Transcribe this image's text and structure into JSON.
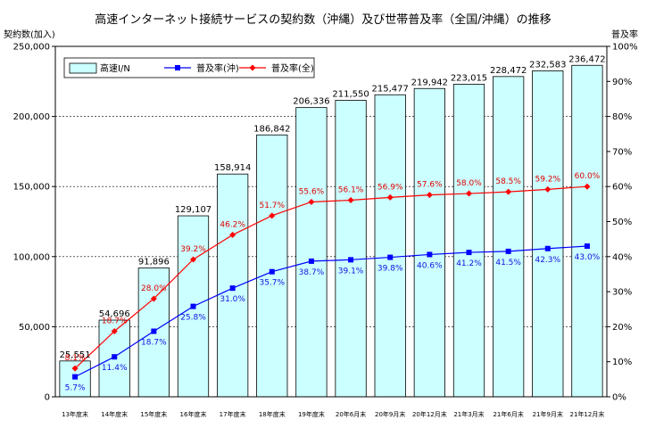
{
  "chart_data": {
    "type": "bar",
    "title": "高速インターネット接続サービスの契約数（沖縄）及び世帯普及率（全国/沖縄）の推移",
    "ylabel_left": "契約数(加入)",
    "ylabel_right": "普及率",
    "ylim_left": [
      0,
      250000
    ],
    "ylim_right": [
      0,
      100
    ],
    "yticks_left": [
      "0",
      "50,000",
      "100,000",
      "150,000",
      "200,000",
      "250,000"
    ],
    "yticks_right": [
      "0%",
      "10%",
      "20%",
      "30%",
      "40%",
      "50%",
      "60%",
      "70%",
      "80%",
      "90%",
      "100%"
    ],
    "grid": true,
    "legend_position": "top-left",
    "categories": [
      "13年度末",
      "14年度末",
      "15年度末",
      "16年度末",
      "17年度末",
      "18年度末",
      "19年度末",
      "20年6月末",
      "20年9月末",
      "20年12月末",
      "21年3月末",
      "21年6月末",
      "21年9月末",
      "21年12月末"
    ],
    "series": [
      {
        "name": "高速I/N",
        "type": "bar",
        "axis": "left",
        "color": "#ccffff",
        "values": [
          25551,
          54696,
          91896,
          129107,
          158914,
          186842,
          206336,
          211550,
          215477,
          219942,
          223015,
          228472,
          232583,
          236472
        ],
        "labels": [
          "25,551",
          "54,696",
          "91,896",
          "129,107",
          "158,914",
          "186,842",
          "206,336",
          "211,550",
          "215,477",
          "219,942",
          "223,015",
          "228,472",
          "232,583",
          "236,472"
        ]
      },
      {
        "name": "普及率(沖)",
        "type": "line",
        "axis": "right",
        "color": "#0000ff",
        "marker": "square",
        "values": [
          5.7,
          11.4,
          18.7,
          25.8,
          31.0,
          35.7,
          38.7,
          39.1,
          39.8,
          40.6,
          41.2,
          41.5,
          42.3,
          43.0
        ],
        "labels": [
          "5.7%",
          "11.4%",
          "18.7%",
          "25.8%",
          "31.0%",
          "35.7%",
          "38.7%",
          "39.1%",
          "39.8%",
          "40.6%",
          "41.2%",
          "41.5%",
          "42.3%",
          "43.0%"
        ]
      },
      {
        "name": "普及率(全)",
        "type": "line",
        "axis": "right",
        "color": "#ff0000",
        "marker": "diamond",
        "values": [
          8.1,
          18.7,
          28.0,
          39.2,
          46.2,
          51.7,
          55.6,
          56.1,
          56.9,
          57.6,
          58.0,
          58.5,
          59.2,
          60.0
        ],
        "labels": [
          "8.1%",
          "18.7%",
          "28.0%",
          "39.2%",
          "46.2%",
          "51.7%",
          "55.6%",
          "56.1%",
          "56.9%",
          "57.6%",
          "58.0%",
          "58.5%",
          "59.2%",
          "60.0%"
        ]
      }
    ]
  }
}
